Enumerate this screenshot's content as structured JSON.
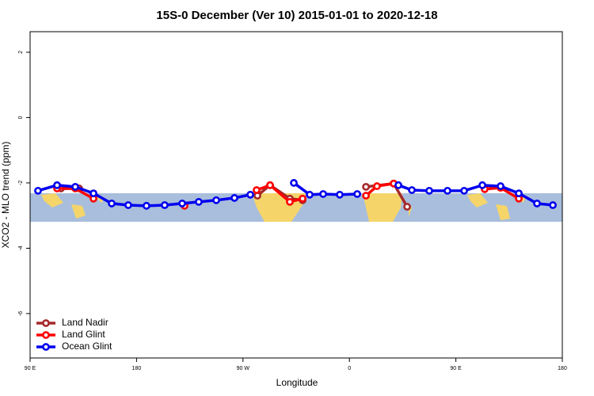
{
  "chart_data": {
    "type": "line",
    "title": "15S-0 December (Ver 10)   2015-01-01 to 2020-12-18",
    "x_label": "Longitude",
    "y_label": "XCO2 - MLO trend (ppm)",
    "xlim": [
      90,
      540
    ],
    "xticks": [
      {
        "value": 90,
        "label": "90 E"
      },
      180,
      {
        "value": 270,
        "label": "90 W"
      },
      {
        "value": 360,
        "label": "0"
      },
      {
        "value": 450,
        "label": "90 E"
      },
      {
        "value": 540,
        "label": "180"
      }
    ],
    "ylim": [
      -7.36,
      2.63
    ],
    "yticks": [
      2,
      0,
      -2,
      -4,
      -6
    ],
    "legend": "bottom-left",
    "series": [
      {
        "name": "Land Nadir",
        "color": "#a52a2a",
        "x": [
          116.1,
          131.5,
          null,
          282.2,
          292.9,
          309.6,
          320.4,
          null,
          374,
          397.4,
          408.8,
          null,
          474.4,
          487.8
        ],
        "values": [
          -2.17,
          -2.17,
          null,
          -2.39,
          -2.07,
          -2.48,
          -2.53,
          null,
          -2.12,
          -2.02,
          -2.73,
          null,
          -2.19,
          -2.12
        ]
      },
      {
        "name": "Land Glint",
        "color": "#ff0000",
        "x": [
          112.8,
          128.2,
          143.6,
          null,
          220.6,
          null,
          281.5,
          292.9,
          309.6,
          320.4,
          null,
          374,
          383.3,
          397.4,
          null,
          474.4,
          487.8,
          503.2
        ],
        "values": [
          -2.17,
          -2.17,
          -2.48,
          null,
          -2.7,
          null,
          -2.22,
          -2.07,
          -2.58,
          -2.48,
          null,
          -2.39,
          -2.1,
          -2.02,
          null,
          -2.19,
          -2.15,
          -2.48
        ]
      },
      {
        "name": "Ocean Glint",
        "color": "#0000ee",
        "x": [
          96.7,
          112.8,
          128.2,
          143.6,
          159,
          173,
          188.4,
          203.8,
          218.6,
          232.6,
          247.4,
          262.8,
          276.2,
          null,
          313,
          326.4,
          337.8,
          351.8,
          366.6,
          null,
          401.4,
          412.8,
          427.5,
          442.9,
          457,
          472.4,
          487.8,
          503.2,
          518.6,
          532
        ],
        "values": [
          -2.24,
          -2.07,
          -2.12,
          -2.32,
          -2.63,
          -2.68,
          -2.7,
          -2.68,
          -2.63,
          -2.58,
          -2.53,
          -2.46,
          -2.36,
          null,
          -2.0,
          -2.36,
          -2.34,
          -2.36,
          -2.34,
          null,
          -2.07,
          -2.22,
          -2.24,
          -2.24,
          -2.24,
          -2.07,
          -2.1,
          -2.32,
          -2.63,
          -2.68
        ]
      }
    ]
  }
}
